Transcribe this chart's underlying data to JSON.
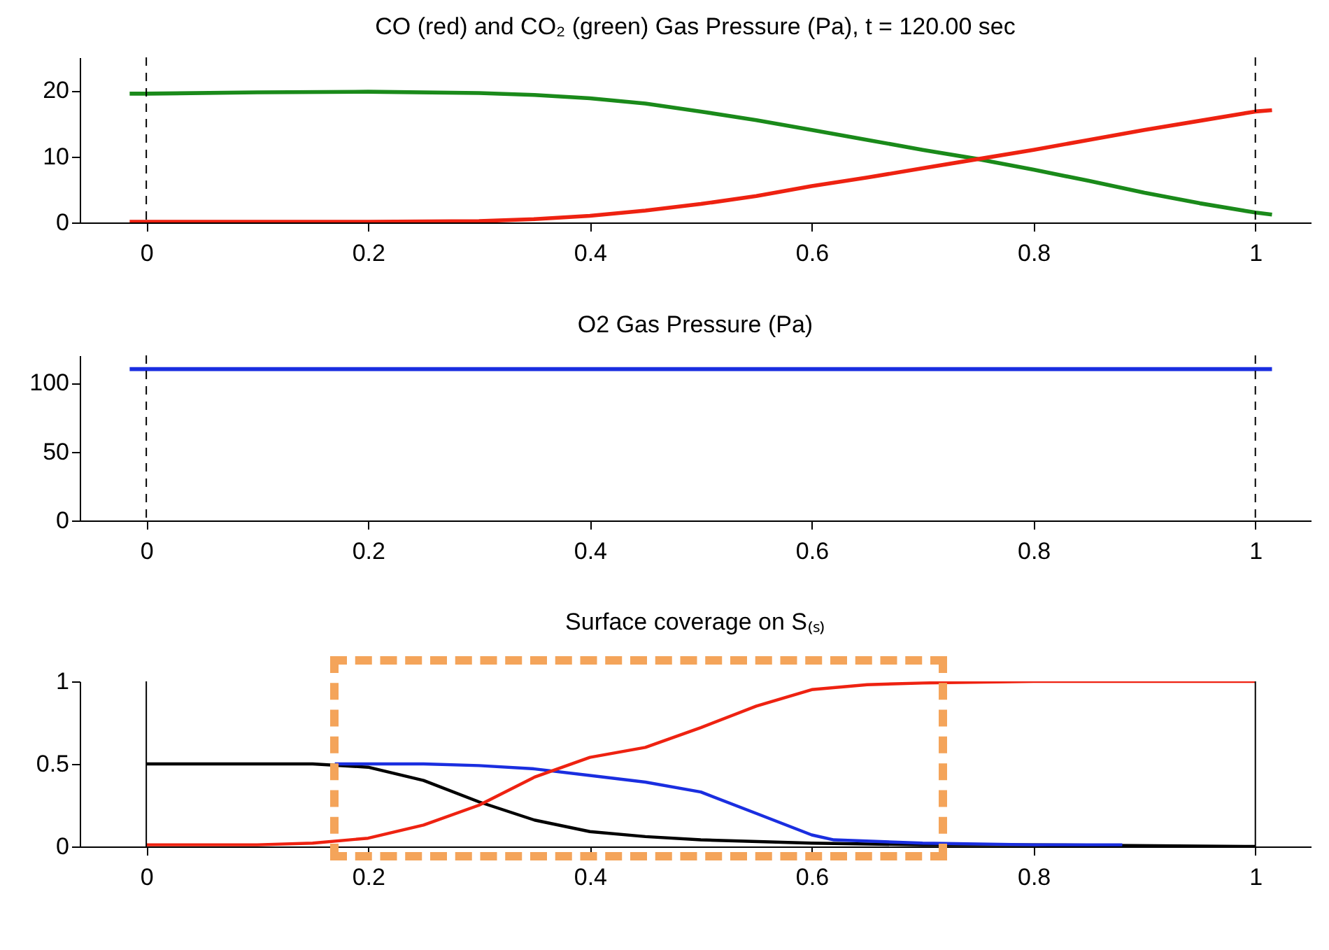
{
  "chart_data": [
    {
      "type": "line",
      "title": "CO (red) and CO₂ (green) Gas Pressure (Pa), t = 120.00 sec",
      "xlim": [
        -0.06,
        1.05
      ],
      "xticks": [
        0,
        0.2,
        0.4,
        0.6,
        0.8,
        1
      ],
      "ylim": [
        0,
        25
      ],
      "yticks": [
        0,
        10,
        20
      ],
      "series": [
        {
          "color": "#1a8a1a",
          "x": [
            -0.015,
            0,
            0.1,
            0.2,
            0.3,
            0.35,
            0.4,
            0.45,
            0.5,
            0.55,
            0.6,
            0.65,
            0.7,
            0.75,
            0.8,
            0.85,
            0.9,
            0.95,
            1.0,
            1.015
          ],
          "values": [
            19.5,
            19.5,
            19.7,
            19.8,
            19.6,
            19.3,
            18.8,
            18,
            16.8,
            15.5,
            14,
            12.5,
            11,
            9.6,
            8,
            6.3,
            4.5,
            2.9,
            1.5,
            1.2
          ]
        },
        {
          "color": "#ee2211",
          "x": [
            -0.015,
            0,
            0.1,
            0.2,
            0.3,
            0.35,
            0.4,
            0.45,
            0.5,
            0.55,
            0.6,
            0.65,
            0.7,
            0.75,
            0.8,
            0.85,
            0.9,
            0.95,
            1.0,
            1.015
          ],
          "values": [
            0.1,
            0.1,
            0.1,
            0.1,
            0.2,
            0.5,
            1,
            1.8,
            2.8,
            4,
            5.5,
            6.8,
            8.2,
            9.6,
            11,
            12.5,
            14,
            15.4,
            16.8,
            17
          ]
        }
      ],
      "ref_lines": [
        {
          "axis": "x",
          "value": 0,
          "line_style": "dashed",
          "color": "#000000"
        },
        {
          "axis": "x",
          "value": 1,
          "line_style": "dashed",
          "color": "#000000"
        }
      ]
    },
    {
      "type": "line",
      "title": "O2 Gas Pressure (Pa)",
      "xlim": [
        -0.06,
        1.05
      ],
      "xticks": [
        0,
        0.2,
        0.4,
        0.6,
        0.8,
        1
      ],
      "ylim": [
        0,
        120
      ],
      "yticks": [
        0,
        50,
        100
      ],
      "series": [
        {
          "color": "#1a2ee0",
          "x": [
            -0.015,
            1.015
          ],
          "values": [
            110,
            110
          ]
        }
      ],
      "ref_lines": [
        {
          "axis": "x",
          "value": 0,
          "line_style": "dashed",
          "color": "#000000"
        },
        {
          "axis": "x",
          "value": 1,
          "line_style": "dashed",
          "color": "#000000"
        }
      ]
    },
    {
      "type": "line",
      "title": "Surface coverage on S₍ₛ₎",
      "xlim": [
        -0.06,
        1.05
      ],
      "xticks": [
        0,
        0.2,
        0.4,
        0.6,
        0.8,
        1
      ],
      "ylim": [
        0,
        1
      ],
      "yticks": [
        0,
        0.5,
        1
      ],
      "series": [
        {
          "color": "#000000",
          "x": [
            0,
            0.1,
            0.15,
            0.2,
            0.25,
            0.3,
            0.35,
            0.4,
            0.45,
            0.5,
            0.6,
            0.7,
            0.8,
            1
          ],
          "values": [
            0.5,
            0.5,
            0.5,
            0.48,
            0.4,
            0.27,
            0.16,
            0.09,
            0.06,
            0.04,
            0.02,
            0.01,
            0.01,
            0
          ]
        },
        {
          "color": "#1a2ee0",
          "x": [
            0.17,
            0.25,
            0.3,
            0.35,
            0.4,
            0.45,
            0.5,
            0.55,
            0.6,
            0.62,
            0.7,
            0.8,
            0.88
          ],
          "values": [
            0.5,
            0.5,
            0.49,
            0.47,
            0.43,
            0.39,
            0.33,
            0.2,
            0.07,
            0.04,
            0.02,
            0.01,
            0.01
          ]
        },
        {
          "color": "#ee2211",
          "x": [
            0,
            0.1,
            0.15,
            0.2,
            0.25,
            0.3,
            0.35,
            0.4,
            0.45,
            0.5,
            0.55,
            0.6,
            0.65,
            0.7,
            0.8,
            1
          ],
          "values": [
            0.01,
            0.01,
            0.02,
            0.05,
            0.13,
            0.25,
            0.42,
            0.54,
            0.6,
            0.72,
            0.85,
            0.95,
            0.98,
            0.99,
            1,
            1
          ]
        }
      ],
      "ref_lines": [
        {
          "axis": "x",
          "value": 0,
          "line_style": "solid",
          "color": "#000000"
        },
        {
          "axis": "x",
          "value": 1,
          "line_style": "solid",
          "color": "#000000"
        }
      ]
    }
  ]
}
